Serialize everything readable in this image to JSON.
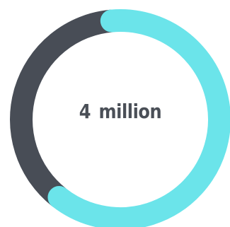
{
  "chart_data": {
    "type": "pie",
    "variant": "donut",
    "title": "",
    "center_label": "4 million",
    "values": [
      0.62,
      0.38
    ],
    "series": [
      {
        "name": "",
        "value": 0.62,
        "color": "#6be4ea"
      },
      {
        "name": "",
        "value": 0.38,
        "color": "#484d56"
      }
    ],
    "start_angle_deg": -5,
    "legend": "none"
  }
}
